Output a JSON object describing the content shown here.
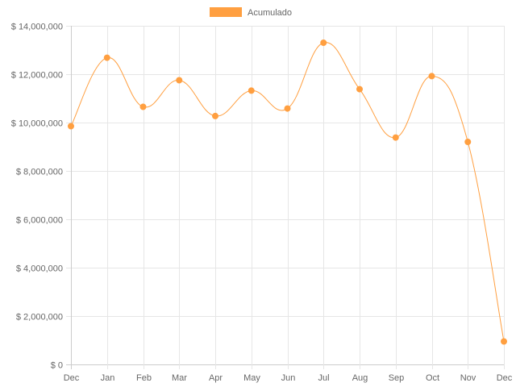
{
  "chart_data": {
    "type": "line",
    "title": "",
    "xlabel": "",
    "ylabel": "",
    "categories": [
      "Dec",
      "Jan",
      "Feb",
      "Mar",
      "Apr",
      "May",
      "Jun",
      "Jul",
      "Aug",
      "Sep",
      "Oct",
      "Nov",
      "Dec"
    ],
    "series": [
      {
        "name": "Acumulado",
        "color": "#ff9f40",
        "values": [
          9850000,
          12680000,
          10650000,
          11750000,
          10270000,
          11320000,
          10580000,
          13300000,
          11380000,
          9380000,
          11920000,
          9200000,
          950000
        ]
      }
    ],
    "ylim": [
      0,
      14000000
    ],
    "yticks": [
      0,
      2000000,
      4000000,
      6000000,
      8000000,
      10000000,
      12000000,
      14000000
    ],
    "ytick_labels": [
      "$ 0",
      "$ 2,000,000",
      "$ 4,000,000",
      "$ 6,000,000",
      "$ 8,000,000",
      "$ 10,000,000",
      "$ 12,000,000",
      "$ 14,000,000"
    ],
    "grid": true,
    "legend_position": "top",
    "curve": "smooth"
  }
}
